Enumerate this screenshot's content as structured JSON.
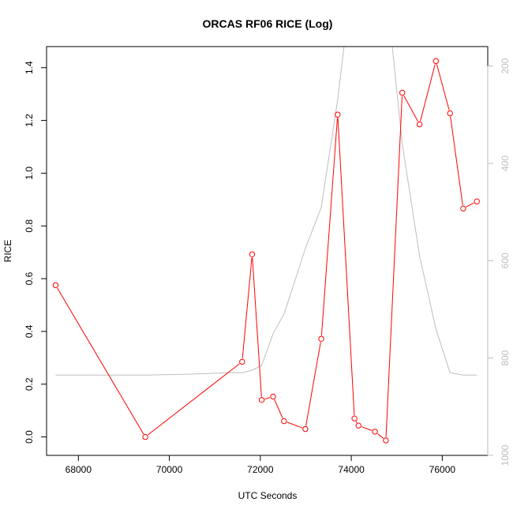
{
  "chart_data": {
    "type": "line",
    "title": "ORCAS RF06 RICE (Log)",
    "xlabel": "UTC Seconds",
    "ylabel": "RICE",
    "xlim": [
      67300,
      77000
    ],
    "ylim": [
      -0.07,
      1.48
    ],
    "y2lim": [
      1000,
      160
    ],
    "y2_reversed": true,
    "x_ticks": [
      68000,
      70000,
      72000,
      74000,
      76000
    ],
    "x_tick_labels": [
      "68000",
      "70000",
      "72000",
      "74000",
      "76000"
    ],
    "y_ticks": [
      0.0,
      0.2,
      0.4,
      0.6,
      0.8,
      1.0,
      1.2,
      1.4
    ],
    "y_tick_labels": [
      "0.0",
      "0.2",
      "0.4",
      "0.6",
      "0.8",
      "1.0",
      "1.2",
      "1.4"
    ],
    "y2_ticks": [
      200,
      400,
      600,
      800,
      1000
    ],
    "y2_tick_labels": [
      "200",
      "400",
      "600",
      "800",
      "1000"
    ],
    "grid": false,
    "series": [
      {
        "color": "#ff0000",
        "marker": "open-circle",
        "axis": "left",
        "x": [
          67500,
          69470,
          71600,
          71820,
          72030,
          72280,
          72520,
          72990,
          73340,
          73700,
          74070,
          74160,
          74520,
          74760,
          75120,
          75500,
          75860,
          76170,
          76460,
          76760
        ],
        "y": [
          0.575,
          0.0,
          0.285,
          0.692,
          0.14,
          0.153,
          0.06,
          0.03,
          0.372,
          1.222,
          0.07,
          0.043,
          0.02,
          -0.013,
          1.305,
          1.185,
          1.425,
          1.227,
          0.866,
          0.893
        ]
      },
      {
        "color": "#bebebe",
        "marker": "none",
        "axis": "right",
        "x": [
          67500,
          68500,
          69500,
          70500,
          71300,
          71600,
          71820,
          72030,
          72280,
          72520,
          72990,
          73340,
          73700,
          73840,
          74900,
          75120,
          75500,
          75860,
          76170,
          76460,
          76760
        ],
        "y": [
          835,
          835,
          835,
          833,
          830,
          830,
          825,
          815,
          750,
          710,
          575,
          490,
          270,
          160,
          160,
          360,
          590,
          740,
          830,
          835,
          835
        ]
      }
    ]
  }
}
